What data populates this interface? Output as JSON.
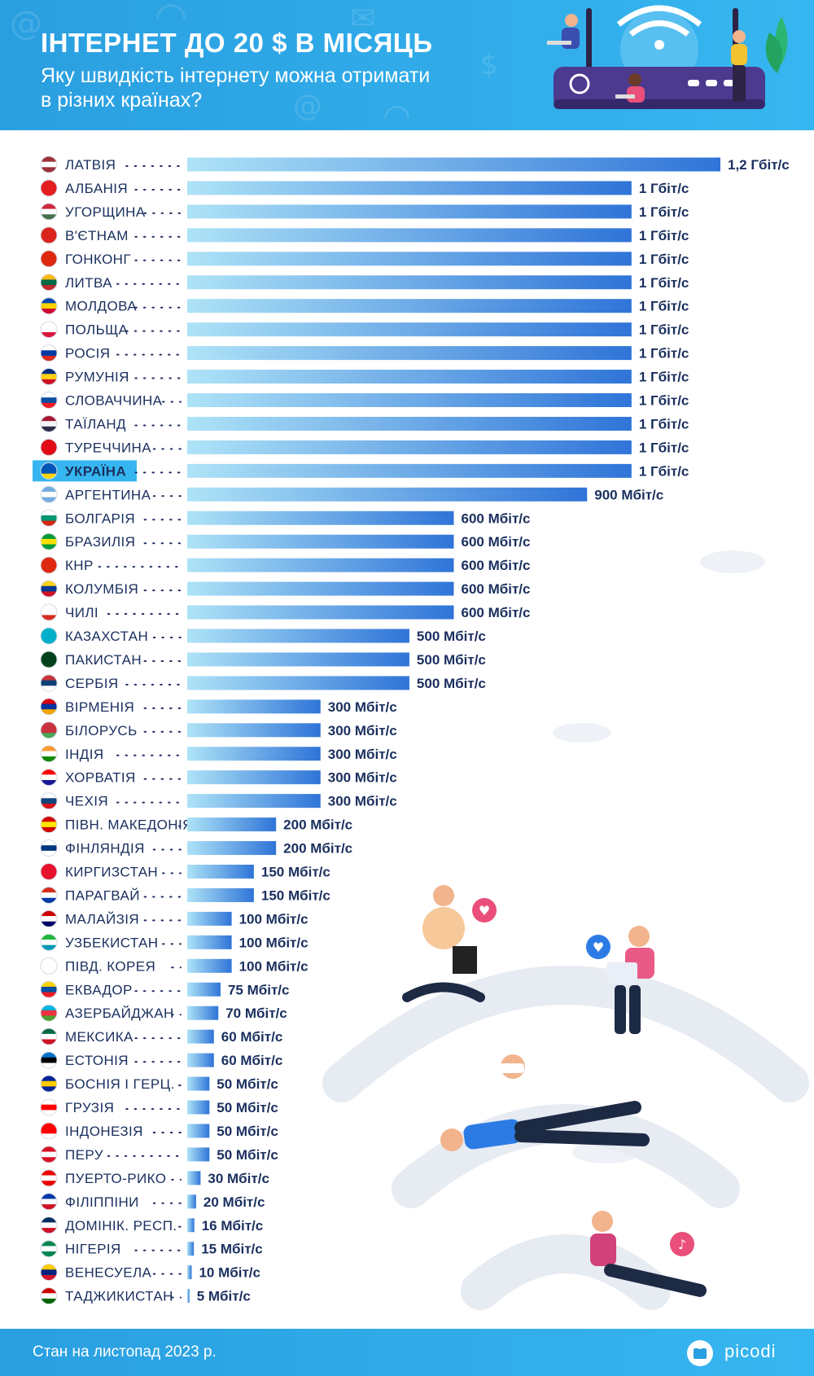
{
  "header": {
    "title": "ІНТЕРНЕТ ДО 20 $ В МІСЯЦЬ",
    "subtitle_line1": "Яку швидкість інтернету можна отримати",
    "subtitle_line2": "в різних країнах?",
    "illustration": "router-with-people-illustration"
  },
  "footer": {
    "note": "Стан на листопад 2023 р.",
    "brand": "picodi",
    "brand_icon": "picodi-logo-icon"
  },
  "colors": {
    "header_bg": "#2a9fe0",
    "bar_start": "#aee3f7",
    "bar_end": "#2f74d8",
    "highlight_bg": "#36b6f0",
    "label_text": "#1a2f5e"
  },
  "chart_data": {
    "type": "bar",
    "orientation": "horizontal",
    "unit": "Мбіт/с",
    "highlight": "УКРАЇНА",
    "categories": [
      "ЛАТВІЯ",
      "АЛБАНІЯ",
      "УГОРЩИНА",
      "В'ЄТНАМ",
      "ГОНКОНГ",
      "ЛИТВА",
      "МОЛДОВА",
      "ПОЛЬЩА",
      "РОСІЯ",
      "РУМУНІЯ",
      "СЛОВАЧЧИНА",
      "ТАЇЛАНД",
      "ТУРЕЧЧИНА",
      "УКРАЇНА",
      "АРГЕНТИНА",
      "БОЛГАРІЯ",
      "БРАЗИЛІЯ",
      "КНР",
      "КОЛУМБІЯ",
      "ЧИЛІ",
      "КАЗАХСТАН",
      "ПАКИСТАН",
      "СЕРБІЯ",
      "ВІРМЕНІЯ",
      "БІЛОРУСЬ",
      "ІНДІЯ",
      "ХОРВАТІЯ",
      "ЧЕХІЯ",
      "ПІВН. МАКЕДОНІЯ",
      "ФІНЛЯНДІЯ",
      "КИРГИЗСТАН",
      "ПАРАГВАЙ",
      "МАЛАЙЗІЯ",
      "УЗБЕКИСТАН",
      "ПІВД. КОРЕЯ",
      "ЕКВАДОР",
      "АЗЕРБАЙДЖАН",
      "МЕКСИКА",
      "ЕСТОНІЯ",
      "БОСНІЯ І ГЕРЦ.",
      "ГРУЗІЯ",
      "ІНДОНЕЗІЯ",
      "ПЕРУ",
      "ПУЕРТО-РИКО",
      "ФІЛІППІНИ",
      "ДОМІНІК. РЕСП.",
      "НІГЕРІЯ",
      "ВЕНЕСУЕЛА",
      "ТАДЖИКИСТАН"
    ],
    "values": [
      1200,
      1000,
      1000,
      1000,
      1000,
      1000,
      1000,
      1000,
      1000,
      1000,
      1000,
      1000,
      1000,
      1000,
      900,
      600,
      600,
      600,
      600,
      600,
      500,
      500,
      500,
      300,
      300,
      300,
      300,
      300,
      200,
      200,
      150,
      150,
      100,
      100,
      100,
      75,
      70,
      60,
      60,
      50,
      50,
      50,
      50,
      30,
      20,
      16,
      15,
      10,
      5
    ],
    "value_labels": [
      "1,2 Гбіт/с",
      "1 Гбіт/с",
      "1 Гбіт/с",
      "1 Гбіт/с",
      "1 Гбіт/с",
      "1 Гбіт/с",
      "1 Гбіт/с",
      "1 Гбіт/с",
      "1 Гбіт/с",
      "1 Гбіт/с",
      "1 Гбіт/с",
      "1 Гбіт/с",
      "1 Гбіт/с",
      "1 Гбіт/с",
      "900 Мбіт/с",
      "600 Мбіт/с",
      "600 Мбіт/с",
      "600 Мбіт/с",
      "600 Мбіт/с",
      "600 Мбіт/с",
      "500 Мбіт/с",
      "500 Мбіт/с",
      "500 Мбіт/с",
      "300 Мбіт/с",
      "300 Мбіт/с",
      "300 Мбіт/с",
      "300 Мбіт/с",
      "300 Мбіт/с",
      "200 Мбіт/с",
      "200 Мбіт/с",
      "150 Мбіт/с",
      "150 Мбіт/с",
      "100 Мбіт/с",
      "100 Мбіт/с",
      "100 Мбіт/с",
      "75 Мбіт/с",
      "70 Мбіт/с",
      "60 Мбіт/с",
      "60 Мбіт/с",
      "50 Мбіт/с",
      "50 Мбіт/с",
      "50 Мбіт/с",
      "50 Мбіт/с",
      "30 Мбіт/с",
      "20 Мбіт/с",
      "16 Мбіт/с",
      "15 Мбіт/с",
      "10 Мбіт/с",
      "5 Мбіт/с"
    ],
    "flag_colors": [
      [
        "#9e3039",
        "#ffffff",
        "#9e3039"
      ],
      [
        "#e41e20",
        "#e41e20",
        "#e41e20"
      ],
      [
        "#ce2939",
        "#ffffff",
        "#477050"
      ],
      [
        "#da251d",
        "#da251d",
        "#da251d"
      ],
      [
        "#de2910",
        "#de2910",
        "#de2910"
      ],
      [
        "#fdb913",
        "#006a44",
        "#c1272d"
      ],
      [
        "#0046ae",
        "#ffd200",
        "#cc092f"
      ],
      [
        "#ffffff",
        "#ffffff",
        "#dc143c"
      ],
      [
        "#ffffff",
        "#0039a6",
        "#d52b1e"
      ],
      [
        "#002b7f",
        "#fcd116",
        "#ce1126"
      ],
      [
        "#ffffff",
        "#0b4ea2",
        "#ee1c25"
      ],
      [
        "#a51931",
        "#f4f5f8",
        "#2d2a4a"
      ],
      [
        "#e30a17",
        "#e30a17",
        "#e30a17"
      ],
      [
        "#0057b7",
        "#0057b7",
        "#ffd700"
      ],
      [
        "#74acdf",
        "#ffffff",
        "#74acdf"
      ],
      [
        "#ffffff",
        "#00966e",
        "#d62612"
      ],
      [
        "#009c3b",
        "#ffdf00",
        "#009c3b"
      ],
      [
        "#de2910",
        "#de2910",
        "#de2910"
      ],
      [
        "#fcd116",
        "#003893",
        "#ce1126"
      ],
      [
        "#ffffff",
        "#ffffff",
        "#d52b1e"
      ],
      [
        "#00afca",
        "#00afca",
        "#00afca"
      ],
      [
        "#01411c",
        "#01411c",
        "#01411c"
      ],
      [
        "#c6363c",
        "#0c4076",
        "#ffffff"
      ],
      [
        "#d90012",
        "#0033a0",
        "#f2a800"
      ],
      [
        "#c8313e",
        "#c8313e",
        "#4aa657"
      ],
      [
        "#ff9933",
        "#ffffff",
        "#138808"
      ],
      [
        "#ff0000",
        "#ffffff",
        "#171796"
      ],
      [
        "#ffffff",
        "#11457e",
        "#d7141a"
      ],
      [
        "#d20000",
        "#ffe600",
        "#d20000"
      ],
      [
        "#ffffff",
        "#003580",
        "#ffffff"
      ],
      [
        "#e8112d",
        "#e8112d",
        "#e8112d"
      ],
      [
        "#d52b1e",
        "#ffffff",
        "#0038a8"
      ],
      [
        "#cc0001",
        "#ffffff",
        "#010066"
      ],
      [
        "#1eb53a",
        "#ffffff",
        "#0099b5"
      ],
      [
        "#ffffff",
        "#ffffff",
        "#ffffff"
      ],
      [
        "#ffd100",
        "#034ea2",
        "#ed1c24"
      ],
      [
        "#00b5e2",
        "#ef3340",
        "#509e2f"
      ],
      [
        "#006847",
        "#ffffff",
        "#ce1126"
      ],
      [
        "#0072ce",
        "#000000",
        "#ffffff"
      ],
      [
        "#002395",
        "#fecb00",
        "#002395"
      ],
      [
        "#ffffff",
        "#ff0000",
        "#ffffff"
      ],
      [
        "#ff0000",
        "#ff0000",
        "#ffffff"
      ],
      [
        "#d91023",
        "#ffffff",
        "#d91023"
      ],
      [
        "#ed0000",
        "#ffffff",
        "#ed0000"
      ],
      [
        "#0038a8",
        "#ffffff",
        "#ce1126"
      ],
      [
        "#002d62",
        "#ffffff",
        "#ce1126"
      ],
      [
        "#008751",
        "#ffffff",
        "#008751"
      ],
      [
        "#ffcc00",
        "#00247d",
        "#cf142b"
      ],
      [
        "#cc0000",
        "#ffffff",
        "#006600"
      ]
    ]
  }
}
